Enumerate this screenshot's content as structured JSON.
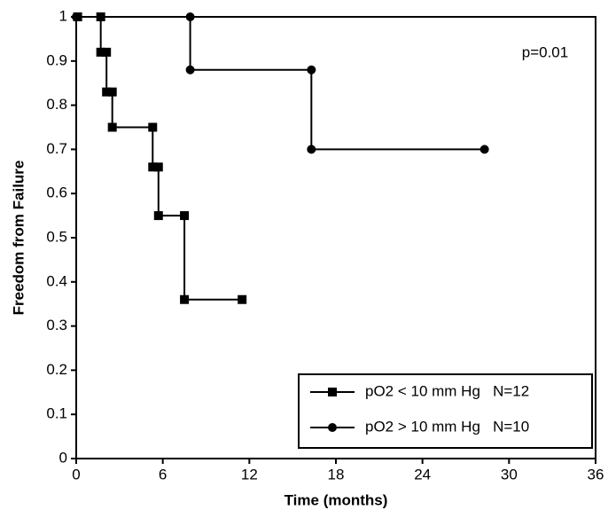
{
  "chart_data": {
    "type": "line",
    "x_label": "Time (months)",
    "y_label": "Freedom from Failure",
    "annotation": "p=0.01",
    "xlim": [
      0,
      36
    ],
    "xticks": [
      0,
      6,
      12,
      18,
      24,
      30,
      36
    ],
    "ylim": [
      0,
      1
    ],
    "yticks": [
      0,
      0.1,
      0.2,
      0.3,
      0.4,
      0.5,
      0.6,
      0.7,
      0.8,
      0.9,
      1
    ],
    "legend": "lower right",
    "series": [
      {
        "name": "pO2 < 10 mm Hg   N=12",
        "color": "#000000",
        "marker": "square",
        "x": [
          0.1,
          1.7,
          1.7,
          2.1,
          2.1,
          2.5,
          2.5,
          5.3,
          5.3,
          5.7,
          5.7,
          7.5,
          7.5,
          11.5
        ],
        "values": [
          1,
          1,
          0.92,
          0.92,
          0.83,
          0.83,
          0.75,
          0.75,
          0.66,
          0.66,
          0.55,
          0.55,
          0.36,
          0.36
        ]
      },
      {
        "name": "pO2 > 10 mm Hg   N=10",
        "color": "#000000",
        "marker": "circle",
        "x": [
          0,
          7.9,
          7.9,
          16.3,
          16.3,
          28.3
        ],
        "values": [
          1,
          1,
          0.88,
          0.88,
          0.7,
          0.7
        ]
      }
    ]
  }
}
